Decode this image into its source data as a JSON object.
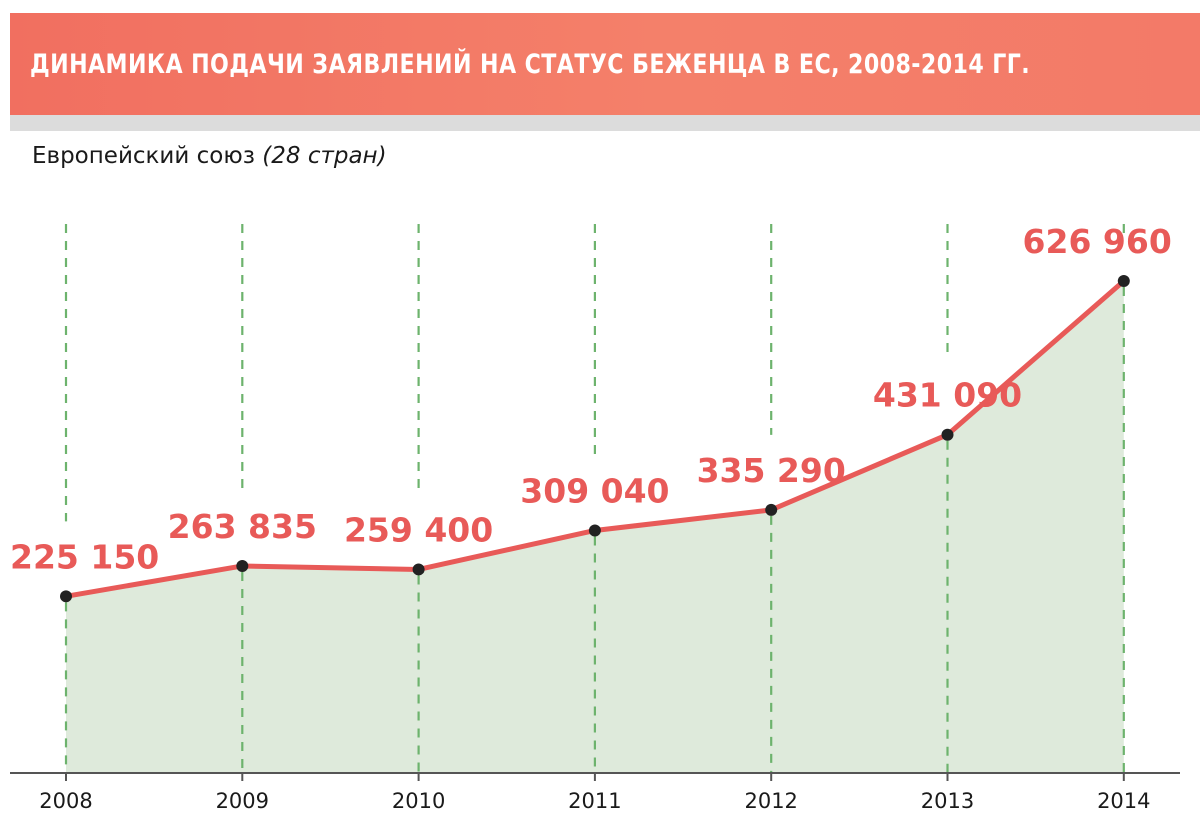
{
  "title": "ДИНАМИКА ПОДАЧИ ЗАЯВЛЕНИЙ НА СТАТУС БЕЖЕНЦА В ЕС, 2008-2014 ГГ.",
  "subtitle": "Европейский союз",
  "subtitle_note": "(28 стран)",
  "colors": {
    "title_band": "#f27566",
    "line": "#e85a58",
    "area_fill": "#deeadb",
    "gridline": "#6db36d",
    "point": "#222222",
    "value_label": "#e85a58"
  },
  "chart_data": {
    "type": "area",
    "categories": [
      "2008",
      "2009",
      "2010",
      "2011",
      "2012",
      "2013",
      "2014"
    ],
    "series": [
      {
        "values": [
          225150,
          263835,
          259400,
          309040,
          335290,
          431090,
          626960
        ],
        "labels": [
          "225 150",
          "263 835",
          "259 400",
          "309 040",
          "335 290",
          "431 090",
          "626 960"
        ]
      }
    ],
    "ylim": [
      0,
      700000
    ],
    "grid": "vertical dashed",
    "legend": "none"
  }
}
